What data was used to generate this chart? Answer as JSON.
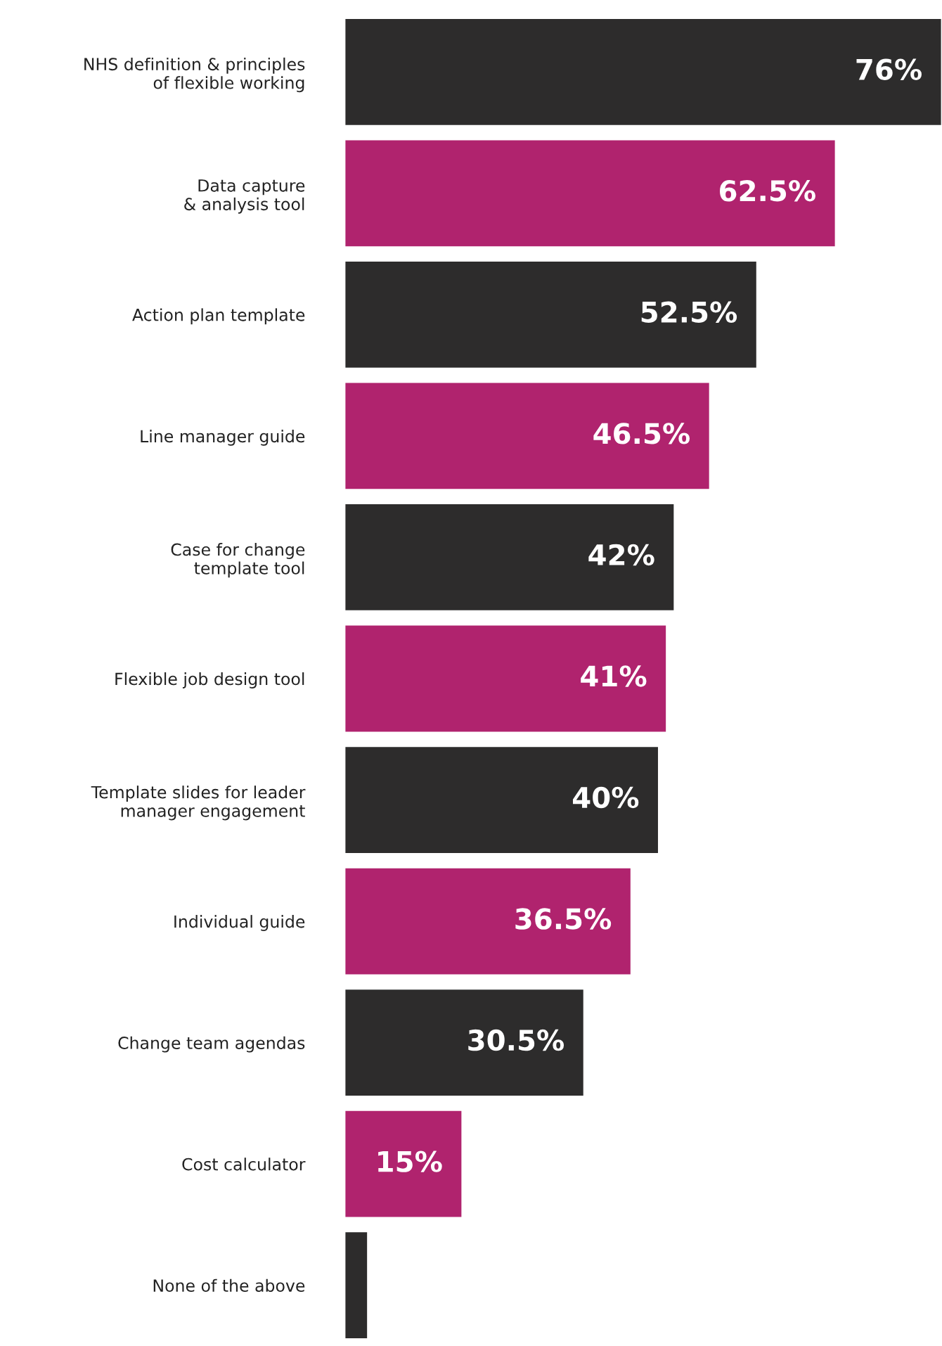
{
  "chart_data": {
    "type": "bar",
    "orientation": "horizontal",
    "categories": [
      "NHS definition & principles\nof flexible working",
      "Data capture\n& analysis tool",
      "Action plan template",
      "Line manager guide",
      "Case for change\ntemplate tool",
      "Flexible job design tool",
      "Template slides for leader\nmanager engagement",
      "Individual guide",
      "Change team agendas",
      "Cost calculator",
      "None of the above"
    ],
    "values": [
      76,
      62.5,
      52.5,
      46.5,
      42,
      41,
      40,
      36.5,
      30.5,
      15,
      3
    ],
    "value_labels": [
      "76%",
      "62.5%",
      "52.5%",
      "46.5%",
      "42%",
      "41%",
      "40%",
      "36.5%",
      "30.5%",
      "15%",
      null
    ],
    "colors": [
      "#2d2c2c",
      "#b0236e",
      "#2d2c2c",
      "#b0236e",
      "#2d2c2c",
      "#b0236e",
      "#2d2c2c",
      "#b0236e",
      "#2d2c2c",
      "#b0236e",
      "#2d2c2c"
    ],
    "xlim": [
      0,
      76
    ],
    "tick_labels": "y"
  }
}
